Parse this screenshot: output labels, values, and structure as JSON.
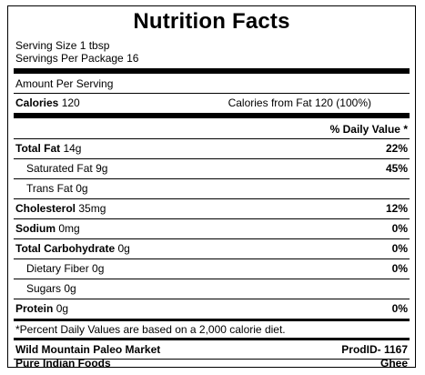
{
  "title": "Nutrition Facts",
  "serving_size": "Serving Size 1 tbsp",
  "servings_per_package": "Servings Per Package 16",
  "amount_per_serving": "Amount Per Serving",
  "calories": {
    "label": "Calories",
    "value": "120",
    "from_fat": "Calories from Fat 120 (100%)"
  },
  "dv_header": "% Daily Value *",
  "nutrients": [
    {
      "label": "Total Fat",
      "amount": "14g",
      "dv": "22%"
    },
    {
      "label": "Saturated Fat",
      "amount": "9g",
      "dv": "45%"
    },
    {
      "label": "Trans Fat",
      "amount": "0g",
      "dv": ""
    },
    {
      "label": "Cholesterol",
      "amount": "35mg",
      "dv": "12%"
    },
    {
      "label": "Sodium",
      "amount": "0mg",
      "dv": "0%"
    },
    {
      "label": "Total Carbohydrate",
      "amount": "0g",
      "dv": "0%"
    },
    {
      "label": "Dietary Fiber",
      "amount": "0g",
      "dv": "0%"
    },
    {
      "label": "Sugars",
      "amount": "0g",
      "dv": ""
    },
    {
      "label": "Protein",
      "amount": "0g",
      "dv": "0%"
    }
  ],
  "footnote": "*Percent Daily Values are based on a 2,000 calorie diet.",
  "store": {
    "name": "Wild Mountain Paleo Market",
    "prod_id": "ProdID- 1167"
  },
  "product": {
    "brand": "Pure Indian Foods",
    "name": "Ghee"
  }
}
